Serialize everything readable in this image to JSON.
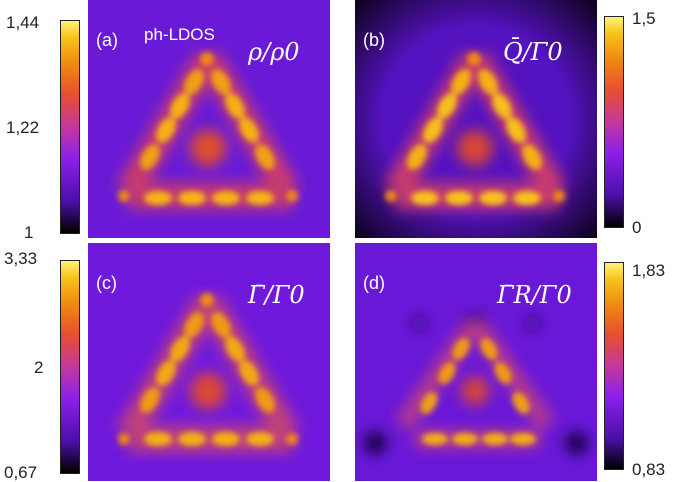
{
  "panels": [
    {
      "id": "a",
      "label": "(a)",
      "quantity": "ρ/ρ0",
      "extra_label": "ph-LDOS"
    },
    {
      "id": "b",
      "label": "(b)",
      "quantity": "Q̄/Γ0"
    },
    {
      "id": "c",
      "label": "(c)",
      "quantity": "Γ̄/Γ0"
    },
    {
      "id": "d",
      "label": "(d)",
      "quantity": "Γ̄R/Γ0"
    }
  ],
  "colorbars": [
    {
      "panel": "a",
      "ticks": [
        "1,44",
        "1,22",
        "1"
      ]
    },
    {
      "panel": "b",
      "ticks": [
        "1,5",
        "0"
      ]
    },
    {
      "panel": "c",
      "ticks": [
        "3,33",
        "2",
        "0,67"
      ]
    },
    {
      "panel": "d",
      "ticks": [
        "1,83",
        "0,83"
      ]
    }
  ],
  "colors": {
    "colormap": [
      "#000000",
      "#4b0fa8",
      "#8c1fe8",
      "#c4389e",
      "#e4502e",
      "#f08a12",
      "#f8c21a",
      "#fff27a"
    ]
  }
}
